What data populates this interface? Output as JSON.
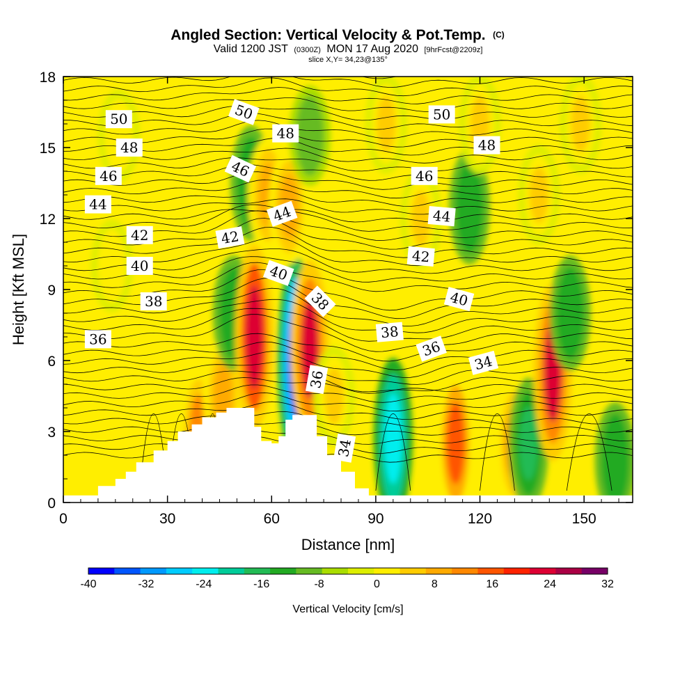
{
  "chart_data": {
    "type": "heatmap",
    "title": "Angled Section: Vertical Velocity & Pot.Temp.",
    "title_mark": "(C)",
    "subtitle": {
      "prefix": "Valid 1200 JST",
      "utc": "(0300Z)",
      "date": "MON 17 Aug 2020",
      "forecast": "[9hrFcst@2209z]"
    },
    "slice": "slice X,Y= 34,23@135°",
    "xlabel": "Distance [nm]",
    "ylabel": "Height [Kft MSL]",
    "xlim": [
      0,
      164
    ],
    "ylim": [
      0,
      18
    ],
    "x_ticks": [
      "0",
      "30",
      "60",
      "90",
      "120",
      "150"
    ],
    "y_ticks": [
      "0",
      "3",
      "6",
      "9",
      "12",
      "15",
      "18"
    ],
    "colorbar": {
      "label": "Vertical Velocity [cm/s]",
      "min": -40,
      "max": 32,
      "step": 4,
      "tick_labels": [
        "-40",
        "-32",
        "-24",
        "-16",
        "-8",
        "0",
        "8",
        "16",
        "24",
        "32"
      ],
      "colors": [
        "#0000ff",
        "#0055ff",
        "#0099ff",
        "#00ccff",
        "#00eeee",
        "#00cc99",
        "#22bb55",
        "#22aa22",
        "#66bb22",
        "#aadd00",
        "#ddee00",
        "#ffee00",
        "#ffcc00",
        "#ffaa00",
        "#ff8800",
        "#ff5500",
        "#ff2200",
        "#dd0033",
        "#aa0044",
        "#770066"
      ]
    },
    "potential_temperature_contours": {
      "units": "C",
      "labels": [
        {
          "value": "50",
          "x": 16,
          "y": 16.2,
          "angle": 0
        },
        {
          "value": "48",
          "x": 19,
          "y": 15.0,
          "angle": 0
        },
        {
          "value": "46",
          "x": 13,
          "y": 13.8,
          "angle": 0
        },
        {
          "value": "44",
          "x": 10,
          "y": 12.6,
          "angle": 0
        },
        {
          "value": "42",
          "x": 22,
          "y": 11.3,
          "angle": 0
        },
        {
          "value": "40",
          "x": 22,
          "y": 10.0,
          "angle": 0
        },
        {
          "value": "38",
          "x": 26,
          "y": 8.5,
          "angle": 0
        },
        {
          "value": "36",
          "x": 10,
          "y": 6.9,
          "angle": 0
        },
        {
          "value": "50",
          "x": 52,
          "y": 16.5,
          "angle": 20
        },
        {
          "value": "48",
          "x": 64,
          "y": 15.6,
          "angle": 0
        },
        {
          "value": "46",
          "x": 51,
          "y": 14.1,
          "angle": 25
        },
        {
          "value": "44",
          "x": 63,
          "y": 12.2,
          "angle": -20
        },
        {
          "value": "42",
          "x": 48,
          "y": 11.2,
          "angle": -10
        },
        {
          "value": "40",
          "x": 62,
          "y": 9.7,
          "angle": 20
        },
        {
          "value": "38",
          "x": 74,
          "y": 8.5,
          "angle": 45
        },
        {
          "value": "36",
          "x": 73,
          "y": 5.2,
          "angle": -80
        },
        {
          "value": "34",
          "x": 81,
          "y": 2.3,
          "angle": -80
        },
        {
          "value": "50",
          "x": 109,
          "y": 16.4,
          "angle": 0
        },
        {
          "value": "48",
          "x": 122,
          "y": 15.1,
          "angle": 0
        },
        {
          "value": "46",
          "x": 104,
          "y": 13.8,
          "angle": 0
        },
        {
          "value": "44",
          "x": 109,
          "y": 12.1,
          "angle": 5
        },
        {
          "value": "42",
          "x": 103,
          "y": 10.4,
          "angle": 5
        },
        {
          "value": "40",
          "x": 114,
          "y": 8.6,
          "angle": 15
        },
        {
          "value": "38",
          "x": 94,
          "y": 7.2,
          "angle": -5
        },
        {
          "value": "36",
          "x": 106,
          "y": 6.5,
          "angle": -20
        },
        {
          "value": "34",
          "x": 121,
          "y": 5.9,
          "angle": -15
        }
      ]
    },
    "terrain_profile_kft": [
      [
        0,
        0
      ],
      [
        10,
        0.7
      ],
      [
        15,
        1.0
      ],
      [
        18,
        1.3
      ],
      [
        21,
        1.7
      ],
      [
        26,
        2.2
      ],
      [
        30,
        2.6
      ],
      [
        33,
        3.0
      ],
      [
        37,
        3.3
      ],
      [
        40,
        3.6
      ],
      [
        44,
        3.8
      ],
      [
        47,
        4.0
      ],
      [
        52,
        4.0
      ],
      [
        55,
        3.2
      ],
      [
        57,
        2.6
      ],
      [
        60,
        2.5
      ],
      [
        62,
        2.8
      ],
      [
        64,
        3.5
      ],
      [
        66,
        3.7
      ],
      [
        70,
        3.7
      ],
      [
        73,
        2.8
      ],
      [
        76,
        2.0
      ],
      [
        80,
        1.3
      ],
      [
        84,
        0.6
      ],
      [
        88,
        0.4
      ],
      [
        88,
        0
      ]
    ],
    "vertical_velocity_cells": [
      {
        "x": 14,
        "y": 10.0,
        "value": 6
      },
      {
        "x": 16,
        "y": 15.5,
        "value": 6
      },
      {
        "x": 39,
        "y": 3.0,
        "value": 16
      },
      {
        "x": 46,
        "y": 4.5,
        "value": 12
      },
      {
        "x": 49,
        "y": 8.0,
        "value": -12
      },
      {
        "x": 55,
        "y": 7.0,
        "value": 30
      },
      {
        "x": 54,
        "y": 13.5,
        "value": -12
      },
      {
        "x": 59,
        "y": 13.0,
        "value": 12
      },
      {
        "x": 67,
        "y": 6.0,
        "value": -36
      },
      {
        "x": 65,
        "y": 12.5,
        "value": 12
      },
      {
        "x": 71,
        "y": 15.5,
        "value": -8
      },
      {
        "x": 71,
        "y": 6.5,
        "value": 28
      },
      {
        "x": 78,
        "y": 4.5,
        "value": 8
      },
      {
        "x": 95,
        "y": 2.7,
        "value": -24
      },
      {
        "x": 93,
        "y": 16.0,
        "value": 8
      },
      {
        "x": 103,
        "y": 12.0,
        "value": 8
      },
      {
        "x": 113,
        "y": 2.5,
        "value": 20
      },
      {
        "x": 117,
        "y": 12.5,
        "value": -12
      },
      {
        "x": 120,
        "y": 16.0,
        "value": 8
      },
      {
        "x": 130,
        "y": 2.5,
        "value": 16
      },
      {
        "x": 134,
        "y": 2.5,
        "value": -16
      },
      {
        "x": 137,
        "y": 13.0,
        "value": 8
      },
      {
        "x": 141,
        "y": 5.5,
        "value": 28
      },
      {
        "x": 146,
        "y": 8.0,
        "value": -12
      },
      {
        "x": 149,
        "y": 16.0,
        "value": 8
      },
      {
        "x": 159,
        "y": 1.8,
        "value": -12
      }
    ]
  }
}
